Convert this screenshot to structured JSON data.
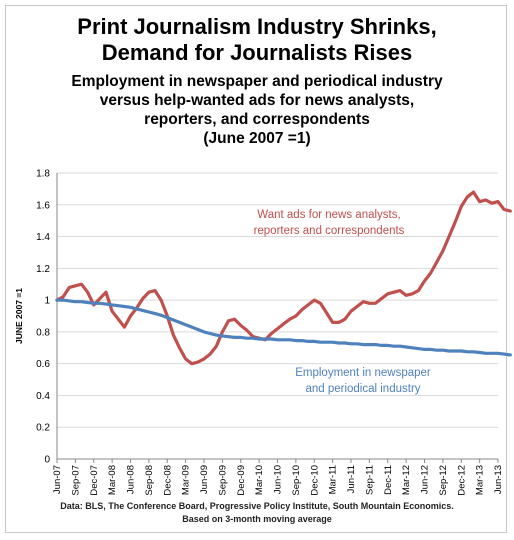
{
  "title_line1": "Print Journalism Industry Shrinks,",
  "title_line2": "Demand for Journalists Rises",
  "subtitle_line1": "Employment in newspaper and periodical industry",
  "subtitle_line2": "versus help-wanted ads for news analysts,",
  "subtitle_line3": "reporters, and correspondents",
  "subtitle_line4": "(June 2007 =1)",
  "source_line1": "Data: BLS, The Conference Board, Progressive Policy Institute, South Mountain Economics.",
  "source_line2": "Based on 3-month moving average",
  "chart_data": {
    "type": "line",
    "ylabel": "JUNE 2007 =1",
    "ylim": [
      0,
      1.8
    ],
    "yticks": [
      "0",
      "0.2",
      "0.4",
      "0.6",
      "0.8",
      "1",
      "1.2",
      "1.4",
      "1.6",
      "1.8"
    ],
    "grid": true,
    "xticks": [
      "Jun-07",
      "Sep-07",
      "Dec-07",
      "Mar-08",
      "Jun-08",
      "Sep-08",
      "Dec-08",
      "Mar-09",
      "Jun-09",
      "Sep-09",
      "Dec-09",
      "Mar-10",
      "Jun-10",
      "Sep-10",
      "Dec-10",
      "Mar-11",
      "Jun-11",
      "Sep-11",
      "Dec-11",
      "Mar-12",
      "Jun-12",
      "Sep-12",
      "Dec-12",
      "Mar-13",
      "Jun-13"
    ],
    "series": [
      {
        "name": "Want ads for news analysts, reporters and correspondents",
        "label_line1": "Want ads for news analysts,",
        "label_line2": "reporters and correspondents",
        "color": "#c0504d",
        "values": [
          1.0,
          1.02,
          1.08,
          1.09,
          1.1,
          1.05,
          0.97,
          1.01,
          1.05,
          0.93,
          0.88,
          0.83,
          0.9,
          0.95,
          1.01,
          1.05,
          1.06,
          1.0,
          0.9,
          0.78,
          0.7,
          0.63,
          0.6,
          0.61,
          0.63,
          0.66,
          0.71,
          0.8,
          0.87,
          0.88,
          0.84,
          0.81,
          0.77,
          0.76,
          0.75,
          0.79,
          0.82,
          0.85,
          0.88,
          0.9,
          0.94,
          0.97,
          1.0,
          0.98,
          0.92,
          0.86,
          0.86,
          0.88,
          0.93,
          0.96,
          0.99,
          0.98,
          0.98,
          1.01,
          1.04,
          1.05,
          1.06,
          1.03,
          1.04,
          1.06,
          1.12,
          1.17,
          1.24,
          1.31,
          1.4,
          1.49,
          1.59,
          1.65,
          1.68,
          1.62,
          1.63,
          1.61,
          1.62,
          1.57,
          1.56
        ]
      },
      {
        "name": "Employment in newspaper and periodical industry",
        "label_line1": "Employment in newspaper",
        "label_line2": "and periodical industry",
        "color": "#4f81bd",
        "values": [
          1.0,
          1.0,
          0.995,
          0.99,
          0.99,
          0.985,
          0.98,
          0.98,
          0.975,
          0.97,
          0.965,
          0.96,
          0.955,
          0.945,
          0.935,
          0.925,
          0.915,
          0.905,
          0.89,
          0.875,
          0.86,
          0.845,
          0.83,
          0.815,
          0.8,
          0.79,
          0.78,
          0.775,
          0.77,
          0.765,
          0.765,
          0.76,
          0.76,
          0.755,
          0.755,
          0.755,
          0.75,
          0.75,
          0.75,
          0.745,
          0.745,
          0.74,
          0.74,
          0.735,
          0.735,
          0.735,
          0.73,
          0.73,
          0.725,
          0.725,
          0.72,
          0.72,
          0.72,
          0.715,
          0.715,
          0.71,
          0.71,
          0.705,
          0.7,
          0.695,
          0.69,
          0.69,
          0.685,
          0.685,
          0.68,
          0.68,
          0.68,
          0.675,
          0.675,
          0.67,
          0.665,
          0.665,
          0.665,
          0.66,
          0.655
        ]
      }
    ]
  }
}
